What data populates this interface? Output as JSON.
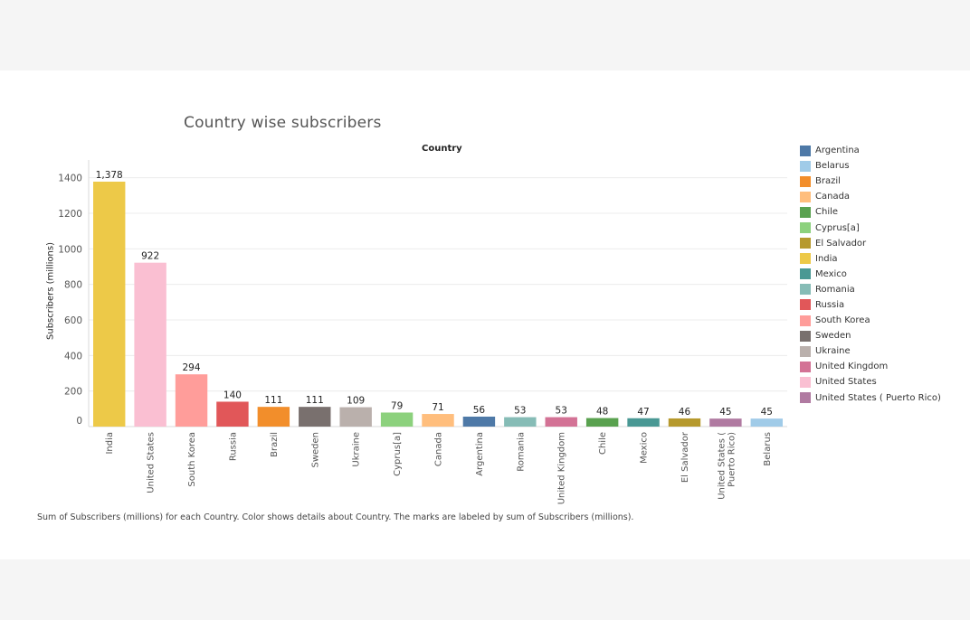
{
  "page": {
    "title": "Country wise subscribers",
    "caption": "Sum of Subscribers (millions) for each Country.  Color shows details about Country.  The marks are labeled by sum of Subscribers (millions)."
  },
  "chart_data": {
    "type": "bar",
    "title": "Country wise subscribers",
    "header": "Country",
    "xlabel": "",
    "ylabel": "Subscribers (millions)",
    "ylim": [
      0,
      1500
    ],
    "yticks": [
      0,
      200,
      400,
      600,
      800,
      1000,
      1200,
      1400
    ],
    "grid": true,
    "legend_position": "right",
    "categories": [
      "India",
      "United States",
      "South Korea",
      "Russia",
      "Brazil",
      "Sweden",
      "Ukraine",
      "Cyprus[a]",
      "Canada",
      "Argentina",
      "Romania",
      "United Kingdom",
      "Chile",
      "Mexico",
      "El Salvador",
      "United States ( Puerto Rico)",
      "Belarus"
    ],
    "tick_lines": [
      [
        "India"
      ],
      [
        "United States"
      ],
      [
        "South Korea"
      ],
      [
        "Russia"
      ],
      [
        "Brazil"
      ],
      [
        "Sweden"
      ],
      [
        "Ukraine"
      ],
      [
        "Cyprus[a]"
      ],
      [
        "Canada"
      ],
      [
        "Argentina"
      ],
      [
        "Romania"
      ],
      [
        "United Kingdom"
      ],
      [
        "Chile"
      ],
      [
        "Mexico"
      ],
      [
        "El Salvador"
      ],
      [
        "United States (",
        "Puerto Rico)"
      ],
      [
        "Belarus"
      ]
    ],
    "values": [
      1378,
      922,
      294,
      140,
      111,
      111,
      109,
      79,
      71,
      56,
      53,
      53,
      48,
      47,
      46,
      45,
      45
    ],
    "data_labels": [
      "1,378",
      "922",
      "294",
      "140",
      "111",
      "111",
      "109",
      "79",
      "71",
      "56",
      "53",
      "53",
      "48",
      "47",
      "46",
      "45",
      "45"
    ],
    "colors": {
      "India": "#EDC948",
      "United States": "#FABFD2",
      "South Korea": "#FF9D9A",
      "Russia": "#E15759",
      "Brazil": "#F28E2B",
      "Sweden": "#79706E",
      "Ukraine": "#BAB0AC",
      "Cyprus[a]": "#8CD17D",
      "Canada": "#FFBE7D",
      "Argentina": "#4E79A7",
      "Romania": "#86BCB6",
      "United Kingdom": "#D37295",
      "Chile": "#59A14F",
      "Mexico": "#499894",
      "El Salvador": "#B6992D",
      "United States ( Puerto Rico)": "#B07AA1",
      "Belarus": "#A0CBE8"
    },
    "legend": [
      "Argentina",
      "Belarus",
      "Brazil",
      "Canada",
      "Chile",
      "Cyprus[a]",
      "El Salvador",
      "India",
      "Mexico",
      "Romania",
      "Russia",
      "South Korea",
      "Sweden",
      "Ukraine",
      "United Kingdom",
      "United States",
      "United States ( Puerto Rico)"
    ]
  }
}
